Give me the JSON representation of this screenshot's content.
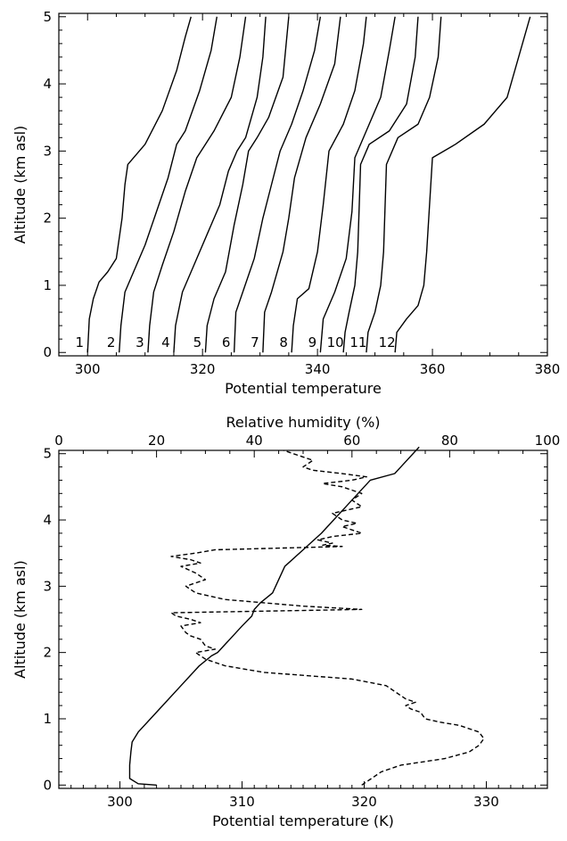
{
  "chart_data": [
    {
      "type": "line",
      "title": "",
      "xlabel": "Potential temperature",
      "ylabel": "Altitude (km asl)",
      "xlim": [
        295,
        380
      ],
      "ylim": [
        -0.05,
        5.05
      ],
      "xticks": [
        300,
        320,
        340,
        360,
        380
      ],
      "xtick_labels": [
        "300",
        "320",
        "340",
        "360",
        "380"
      ],
      "yticks": [
        0,
        1,
        2,
        3,
        4,
        5
      ],
      "ytick_labels": [
        "0",
        "1",
        "2",
        "3",
        "4",
        "5"
      ],
      "grid": false,
      "profile_labels": [
        "1",
        "2",
        "3",
        "4",
        "5",
        "6",
        "7",
        "8",
        "9",
        "10",
        "11",
        "12"
      ],
      "series": [
        {
          "x": [
            300,
            300.3,
            301,
            302,
            303.5,
            305,
            306,
            306.5,
            307,
            310,
            313,
            315.5,
            317,
            318
          ],
          "y": [
            0,
            0.5,
            0.8,
            1.05,
            1.2,
            1.4,
            2.0,
            2.5,
            2.8,
            3.1,
            3.6,
            4.2,
            4.7,
            5.0
          ]
        },
        {
          "x": [
            305.5,
            305.8,
            306.5,
            308,
            310,
            312,
            314,
            315.5,
            317,
            319.5,
            321.5,
            322.5
          ],
          "y": [
            0,
            0.4,
            0.9,
            1.2,
            1.6,
            2.1,
            2.6,
            3.1,
            3.3,
            3.9,
            4.5,
            5.0
          ]
        },
        {
          "x": [
            310.5,
            310.8,
            311.5,
            313,
            315,
            317,
            319,
            320.5,
            322,
            325,
            326.5,
            327.5
          ],
          "y": [
            0,
            0.4,
            0.9,
            1.3,
            1.8,
            2.4,
            2.9,
            3.1,
            3.3,
            3.8,
            4.4,
            5.0
          ]
        },
        {
          "x": [
            315,
            315.3,
            316.5,
            318.5,
            321,
            323,
            324.5,
            326,
            327.5,
            329.5,
            330.5,
            331
          ],
          "y": [
            0,
            0.4,
            0.9,
            1.3,
            1.8,
            2.2,
            2.7,
            3.0,
            3.2,
            3.8,
            4.4,
            5.0
          ]
        },
        {
          "x": [
            320.5,
            320.8,
            322,
            324,
            325.5,
            327,
            328,
            329.5,
            331.5,
            334,
            335
          ],
          "y": [
            0,
            0.4,
            0.8,
            1.2,
            1.9,
            2.5,
            3.0,
            3.2,
            3.5,
            4.1,
            5.0
          ]
        },
        {
          "x": [
            325.5,
            325.8,
            327,
            329,
            330.5,
            332,
            333.5,
            335.5,
            337.5,
            339.5,
            340.5
          ],
          "y": [
            0,
            0.6,
            0.9,
            1.4,
            2.0,
            2.5,
            3.0,
            3.4,
            3.9,
            4.5,
            5.0
          ]
        },
        {
          "x": [
            330.5,
            330.8,
            332,
            334,
            335,
            336,
            338,
            340.5,
            343,
            344
          ],
          "y": [
            0,
            0.6,
            0.9,
            1.5,
            2.0,
            2.6,
            3.2,
            3.7,
            4.3,
            5.0
          ]
        },
        {
          "x": [
            335.5,
            335.8,
            336.5,
            338.5,
            340,
            341,
            342,
            344.5,
            346.5,
            348,
            348.5
          ],
          "y": [
            0,
            0.4,
            0.8,
            0.95,
            1.5,
            2.2,
            3.0,
            3.4,
            3.9,
            4.6,
            5.0
          ]
        },
        {
          "x": [
            340.5,
            341,
            343,
            345,
            346,
            346.5,
            348.5,
            351,
            352.5,
            353.5
          ],
          "y": [
            0,
            0.5,
            0.9,
            1.4,
            2.1,
            2.9,
            3.3,
            3.8,
            4.5,
            5.0
          ]
        },
        {
          "x": [
            344.5,
            344.8,
            345.5,
            346.5,
            347,
            347.5,
            349,
            352.5,
            355.5,
            357,
            357.5
          ],
          "y": [
            0,
            0.3,
            0.6,
            1.0,
            1.5,
            2.8,
            3.1,
            3.3,
            3.7,
            4.4,
            5.0
          ]
        },
        {
          "x": [
            348.5,
            348.8,
            350,
            351,
            351.5,
            352,
            354,
            357.5,
            359.5,
            361,
            361.5
          ],
          "y": [
            0,
            0.3,
            0.6,
            1.0,
            1.5,
            2.8,
            3.2,
            3.4,
            3.8,
            4.4,
            5.0
          ]
        },
        {
          "x": [
            353.5,
            353.8,
            355.5,
            357.5,
            358.5,
            359,
            360,
            364,
            369,
            373,
            375,
            377
          ],
          "y": [
            0,
            0.3,
            0.5,
            0.7,
            1.0,
            1.5,
            2.9,
            3.1,
            3.4,
            3.8,
            4.4,
            5.0
          ]
        }
      ]
    },
    {
      "type": "line",
      "title": "",
      "xlabel": "Potential temperature (K)",
      "ylabel": "Altitude (km asl)",
      "x2label": "Relative humidity (%)",
      "xlim": [
        295,
        335
      ],
      "x2lim": [
        0,
        100
      ],
      "ylim": [
        -0.05,
        5.05
      ],
      "xticks": [
        300,
        310,
        320,
        330
      ],
      "xtick_labels": [
        "300",
        "310",
        "320",
        "330"
      ],
      "x2ticks": [
        0,
        20,
        40,
        60,
        80,
        100
      ],
      "x2tick_labels": [
        "0",
        "20",
        "40",
        "60",
        "80",
        "100"
      ],
      "yticks": [
        0,
        1,
        2,
        3,
        4,
        5
      ],
      "ytick_labels": [
        "0",
        "1",
        "2",
        "3",
        "4",
        "5"
      ],
      "grid": false,
      "series": [
        {
          "style": "solid",
          "axis": "bottom",
          "x": [
            303,
            301.5,
            300.8,
            300.8,
            300.9,
            301,
            301.5,
            302.5,
            303.5,
            305,
            306.5,
            307.5,
            308,
            309,
            310,
            310.8,
            311,
            311.5,
            312.5,
            313,
            313.5,
            315,
            316.5,
            317.5,
            318.5,
            319.5,
            320.5,
            322.5,
            323,
            324.5
          ],
          "y": [
            0,
            0.02,
            0.1,
            0.3,
            0.5,
            0.65,
            0.8,
            1.0,
            1.2,
            1.5,
            1.8,
            1.95,
            2.0,
            2.2,
            2.4,
            2.55,
            2.65,
            2.75,
            2.9,
            3.1,
            3.3,
            3.55,
            3.8,
            4.0,
            4.2,
            4.4,
            4.6,
            4.7,
            4.8,
            5.1
          ]
        },
        {
          "style": "dashed",
          "axis": "top",
          "x": [
            62,
            64,
            66,
            70,
            79,
            84,
            86,
            87,
            86,
            82,
            78,
            75,
            74,
            72,
            71,
            73,
            71,
            69,
            67,
            60,
            42,
            34,
            30,
            28,
            32,
            30,
            29,
            27,
            26,
            25,
            29,
            27,
            24,
            23,
            62,
            50,
            42,
            34,
            28,
            26,
            30,
            28,
            25,
            29,
            27,
            23,
            28,
            32,
            58,
            54,
            56,
            53,
            56,
            62,
            60,
            58,
            61,
            58,
            56,
            62,
            60,
            62,
            58,
            54,
            60,
            63,
            58,
            52,
            50,
            52,
            46
          ],
          "y": [
            0,
            0.1,
            0.2,
            0.3,
            0.4,
            0.5,
            0.6,
            0.7,
            0.8,
            0.9,
            0.95,
            1.0,
            1.1,
            1.15,
            1.2,
            1.25,
            1.3,
            1.4,
            1.5,
            1.6,
            1.7,
            1.8,
            1.9,
            2.0,
            2.05,
            2.1,
            2.2,
            2.25,
            2.3,
            2.4,
            2.45,
            2.5,
            2.55,
            2.6,
            2.65,
            2.7,
            2.75,
            2.8,
            2.9,
            3.0,
            3.1,
            3.2,
            3.3,
            3.35,
            3.4,
            3.45,
            3.5,
            3.55,
            3.6,
            3.62,
            3.65,
            3.7,
            3.75,
            3.8,
            3.85,
            3.9,
            3.95,
            4.0,
            4.1,
            4.2,
            4.3,
            4.4,
            4.5,
            4.55,
            4.6,
            4.65,
            4.7,
            4.75,
            4.8,
            4.9,
            5.05
          ]
        }
      ]
    }
  ]
}
